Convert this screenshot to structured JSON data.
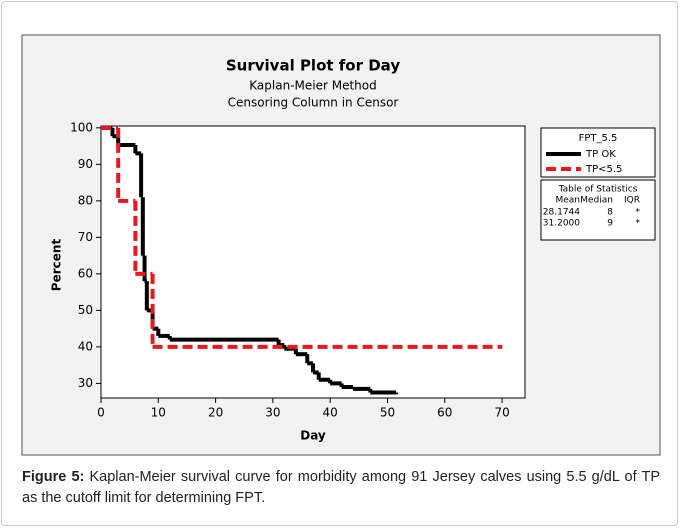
{
  "chart_data": {
    "type": "step",
    "title": "Survival Plot for Day",
    "subtitle": "Kaplan-Meier Method",
    "subtitle2": "Censoring Column in Censor",
    "xlabel": "Day",
    "ylabel": "Percent",
    "xlim": [
      0,
      74
    ],
    "ylim": [
      26,
      100.5
    ],
    "xticks": [
      0,
      10,
      20,
      30,
      40,
      50,
      60,
      70
    ],
    "yticks": [
      30,
      40,
      50,
      60,
      70,
      80,
      90,
      100
    ],
    "legend_title": "FPT_5.5",
    "series": [
      {
        "name": "TP OK",
        "color": "#000000",
        "dash": false,
        "x": [
          0,
          2,
          3,
          6,
          7,
          7.3,
          7.6,
          8,
          9,
          10,
          12,
          31,
          32,
          34,
          36,
          37,
          38,
          40,
          42,
          44,
          47,
          51.5
        ],
        "values": [
          100,
          97.7,
          95.3,
          93,
          81,
          65,
          58,
          50,
          45,
          43,
          42,
          40.5,
          39.5,
          38,
          35.5,
          33,
          31,
          30,
          29,
          28.5,
          27.5,
          27
        ]
      },
      {
        "name": "TP<5.5",
        "color": "#e8191e",
        "dash": true,
        "x": [
          0,
          3,
          6,
          9,
          70
        ],
        "values": [
          100,
          80,
          60,
          40,
          40
        ]
      }
    ],
    "stats_table": {
      "title": "Table of Statistics",
      "headers": [
        "Mean",
        "Median",
        "IQR"
      ],
      "rows": [
        [
          "28.1744",
          "8",
          "*"
        ],
        [
          "31.2000",
          "9",
          "*"
        ]
      ]
    }
  },
  "caption": {
    "label": "Figure 5:",
    "text": "Kaplan-Meier survival curve for morbidity among 91 Jersey calves using 5.5 g/dL of TP as the cutoff limit for determining FPT."
  }
}
